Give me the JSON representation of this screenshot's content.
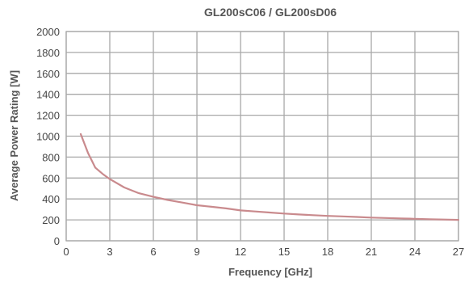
{
  "chart_data": {
    "type": "line",
    "title": "GL200sC06 / GL200sD06",
    "xlabel": "Frequency [GHz]",
    "ylabel": "Average Power Rating [W]",
    "xlim": [
      0,
      27
    ],
    "ylim": [
      0,
      2000
    ],
    "xticks": [
      "0",
      "3",
      "6",
      "9",
      "12",
      "15",
      "18",
      "21",
      "24",
      "27"
    ],
    "yticks": [
      "0",
      "200",
      "400",
      "600",
      "800",
      "1000",
      "1200",
      "1400",
      "1600",
      "1800",
      "2000"
    ],
    "grid": true,
    "series_color": "#c98a8d",
    "series": [
      {
        "x": [
          1.0,
          1.5,
          2.0,
          2.5,
          3.0,
          4.0,
          5.0,
          6.0,
          7.0,
          8.0,
          9.0,
          10.0,
          11.0,
          12.0,
          13.0,
          14.0,
          15.0,
          16.0,
          17.0,
          18.0,
          19.0,
          20.0,
          21.0,
          22.0,
          23.0,
          24.0,
          25.0,
          26.0,
          27.0
        ],
        "y": [
          1020,
          840,
          700,
          640,
          590,
          510,
          455,
          420,
          390,
          365,
          340,
          325,
          310,
          290,
          280,
          270,
          260,
          252,
          245,
          238,
          233,
          228,
          222,
          218,
          214,
          210,
          206,
          203,
          200
        ]
      }
    ]
  }
}
